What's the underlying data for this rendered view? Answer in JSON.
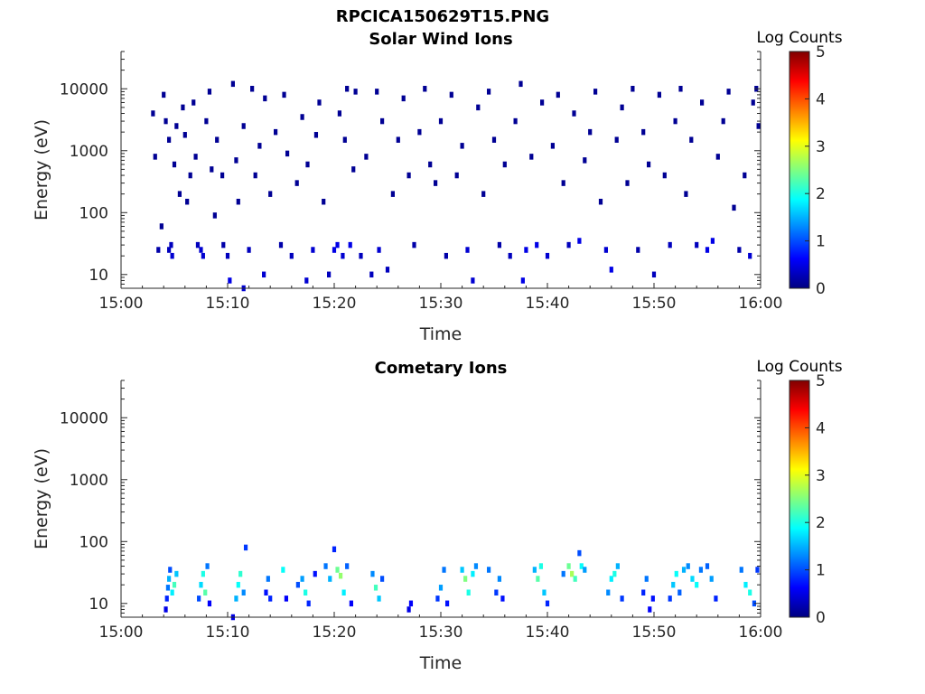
{
  "figure_title": "RPCICA150629T15.PNG",
  "colormap": [
    "#000080",
    "#0000ff",
    "#0080ff",
    "#00ffff",
    "#80ff80",
    "#ffff00",
    "#ff8000",
    "#ff0000",
    "#800000"
  ],
  "chart_data": [
    {
      "type": "heatmap",
      "title": "Solar Wind Ions",
      "xlabel": "Time",
      "ylabel": "Energy (eV)",
      "xlim": [
        0,
        60
      ],
      "ylim": [
        6,
        40000
      ],
      "yscale": "log",
      "x_ticks": [
        "15:00",
        "15:10",
        "15:20",
        "15:30",
        "15:40",
        "15:50",
        "16:00"
      ],
      "y_ticks": [
        "10",
        "100",
        "1000",
        "10000"
      ],
      "colorbar": {
        "label": "Log Counts",
        "ticks": [
          "0",
          "1",
          "2",
          "3",
          "4",
          "5"
        ],
        "range": [
          0,
          5
        ]
      },
      "cells": [
        [
          3,
          4000,
          0.1
        ],
        [
          3.2,
          800,
          0.1
        ],
        [
          3.5,
          25,
          0.2
        ],
        [
          3.8,
          60,
          0.1
        ],
        [
          4,
          8000,
          0.1
        ],
        [
          4.2,
          3000,
          0.1
        ],
        [
          4.5,
          1500,
          0.1
        ],
        [
          4.5,
          25,
          0.3
        ],
        [
          4.7,
          30,
          0.3
        ],
        [
          4.8,
          20,
          0.4
        ],
        [
          5,
          600,
          0.1
        ],
        [
          5.2,
          2500,
          0.1
        ],
        [
          5.5,
          200,
          0.1
        ],
        [
          5.8,
          5000,
          0.1
        ],
        [
          6,
          1800,
          0.1
        ],
        [
          6.2,
          150,
          0.1
        ],
        [
          6.5,
          400,
          0.1
        ],
        [
          6.8,
          6000,
          0.1
        ],
        [
          7,
          800,
          0.1
        ],
        [
          7.2,
          30,
          0.3
        ],
        [
          7.5,
          25,
          0.4
        ],
        [
          7.7,
          20,
          0.4
        ],
        [
          8,
          3000,
          0.1
        ],
        [
          8.3,
          9000,
          0.1
        ],
        [
          8.5,
          500,
          0.1
        ],
        [
          8.8,
          90,
          0.1
        ],
        [
          9,
          1500,
          0.1
        ],
        [
          9.5,
          400,
          0.1
        ],
        [
          9.6,
          30,
          0.2
        ],
        [
          10,
          20,
          0.3
        ],
        [
          10.2,
          8,
          0.5
        ],
        [
          10.5,
          12000,
          0.1
        ],
        [
          10.8,
          700,
          0.1
        ],
        [
          11,
          150,
          0.1
        ],
        [
          11.5,
          6,
          0.4
        ],
        [
          11.5,
          2500,
          0.1
        ],
        [
          12,
          25,
          0.3
        ],
        [
          12.3,
          10000,
          0.1
        ],
        [
          12.6,
          400,
          0.1
        ],
        [
          13,
          1200,
          0.1
        ],
        [
          13.4,
          10,
          0.4
        ],
        [
          13.5,
          7000,
          0.1
        ],
        [
          14,
          200,
          0.1
        ],
        [
          14.5,
          2000,
          0.1
        ],
        [
          15,
          30,
          0.2
        ],
        [
          15.3,
          8000,
          0.1
        ],
        [
          15.6,
          900,
          0.1
        ],
        [
          16,
          20,
          0.3
        ],
        [
          16.5,
          300,
          0.1
        ],
        [
          17,
          3500,
          0.1
        ],
        [
          17.4,
          8,
          0.4
        ],
        [
          17.5,
          600,
          0.1
        ],
        [
          18,
          25,
          0.4
        ],
        [
          18.3,
          1800,
          0.1
        ],
        [
          18.6,
          6000,
          0.1
        ],
        [
          19,
          150,
          0.1
        ],
        [
          19.5,
          10,
          0.3
        ],
        [
          20,
          25,
          0.5
        ],
        [
          20.3,
          30,
          0.5
        ],
        [
          20.5,
          4000,
          0.1
        ],
        [
          20.8,
          20,
          0.4
        ],
        [
          21,
          1500,
          0.1
        ],
        [
          21.2,
          10000,
          0.1
        ],
        [
          21.5,
          30,
          0.5
        ],
        [
          21.8,
          500,
          0.1
        ],
        [
          22,
          9000,
          0.1
        ],
        [
          22.5,
          20,
          0.3
        ],
        [
          23,
          800,
          0.1
        ],
        [
          23.5,
          10,
          0.3
        ],
        [
          24,
          9000,
          0.1
        ],
        [
          24.2,
          25,
          0.4
        ],
        [
          24.5,
          3000,
          0.1
        ],
        [
          25,
          12,
          0.3
        ],
        [
          25.5,
          200,
          0.1
        ],
        [
          26,
          1500,
          0.1
        ],
        [
          26.5,
          7000,
          0.1
        ],
        [
          27,
          400,
          0.1
        ],
        [
          27.5,
          30,
          0.2
        ],
        [
          28,
          2000,
          0.1
        ],
        [
          28.5,
          10000,
          0.1
        ],
        [
          29,
          600,
          0.1
        ],
        [
          29.5,
          300,
          0.1
        ],
        [
          30,
          3000,
          0.1
        ],
        [
          30.5,
          20,
          0.2
        ],
        [
          31,
          8000,
          0.1
        ],
        [
          31.5,
          400,
          0.1
        ],
        [
          32,
          1200,
          0.1
        ],
        [
          32.5,
          25,
          0.4
        ],
        [
          33,
          8,
          0.4
        ],
        [
          33.5,
          5000,
          0.1
        ],
        [
          34,
          200,
          0.1
        ],
        [
          34.5,
          9000,
          0.1
        ],
        [
          35,
          1500,
          0.1
        ],
        [
          35.5,
          30,
          0.2
        ],
        [
          36,
          600,
          0.1
        ],
        [
          36.5,
          20,
          0.3
        ],
        [
          37,
          3000,
          0.1
        ],
        [
          37.5,
          12000,
          0.1
        ],
        [
          37.7,
          8,
          0.5
        ],
        [
          38,
          25,
          0.5
        ],
        [
          38.5,
          800,
          0.1
        ],
        [
          39,
          30,
          0.5
        ],
        [
          39.5,
          6000,
          0.1
        ],
        [
          40,
          20,
          0.4
        ],
        [
          40.5,
          1200,
          0.1
        ],
        [
          41,
          8000,
          0.1
        ],
        [
          41.5,
          300,
          0.1
        ],
        [
          42,
          30,
          0.3
        ],
        [
          42.5,
          4000,
          0.1
        ],
        [
          43,
          35,
          0.5
        ],
        [
          43.5,
          700,
          0.1
        ],
        [
          44,
          2000,
          0.1
        ],
        [
          44.5,
          9000,
          0.1
        ],
        [
          45,
          150,
          0.1
        ],
        [
          45.5,
          25,
          0.4
        ],
        [
          46,
          12,
          0.5
        ],
        [
          46.5,
          1500,
          0.1
        ],
        [
          47,
          5000,
          0.1
        ],
        [
          47.5,
          300,
          0.1
        ],
        [
          48,
          10000,
          0.1
        ],
        [
          48.5,
          25,
          0.2
        ],
        [
          49,
          2000,
          0.1
        ],
        [
          49.5,
          600,
          0.1
        ],
        [
          50,
          10,
          0.3
        ],
        [
          50.5,
          8000,
          0.1
        ],
        [
          51,
          400,
          0.1
        ],
        [
          51.5,
          30,
          0.3
        ],
        [
          52,
          3000,
          0.1
        ],
        [
          52.5,
          10000,
          0.1
        ],
        [
          53,
          200,
          0.1
        ],
        [
          53.5,
          1500,
          0.1
        ],
        [
          54,
          30,
          0.3
        ],
        [
          54.5,
          6000,
          0.1
        ],
        [
          55,
          25,
          0.5
        ],
        [
          55.5,
          35,
          0.5
        ],
        [
          56,
          800,
          0.1
        ],
        [
          56.5,
          3000,
          0.1
        ],
        [
          57,
          9000,
          0.1
        ],
        [
          57.5,
          120,
          0.1
        ],
        [
          58,
          25,
          0.2
        ],
        [
          58.5,
          400,
          0.1
        ],
        [
          59,
          20,
          0.4
        ],
        [
          59.3,
          6000,
          0.1
        ],
        [
          59.6,
          10000,
          0.1
        ],
        [
          59.8,
          2500,
          0.1
        ]
      ]
    },
    {
      "type": "heatmap",
      "title": "Cometary Ions",
      "xlabel": "Time",
      "ylabel": "Energy (eV)",
      "xlim": [
        0,
        60
      ],
      "ylim": [
        6,
        40000
      ],
      "yscale": "log",
      "x_ticks": [
        "15:00",
        "15:10",
        "15:20",
        "15:30",
        "15:40",
        "15:50",
        "16:00"
      ],
      "y_ticks": [
        "10",
        "100",
        "1000",
        "10000"
      ],
      "colorbar": {
        "label": "Log Counts",
        "ticks": [
          "0",
          "1",
          "2",
          "3",
          "4",
          "5"
        ],
        "range": [
          0,
          5
        ]
      },
      "cells": [
        [
          4.2,
          8,
          0.5
        ],
        [
          4.3,
          12,
          0.8
        ],
        [
          4.4,
          18,
          1.2
        ],
        [
          4.5,
          25,
          1.5
        ],
        [
          4.6,
          35,
          1.0
        ],
        [
          4.8,
          15,
          1.8
        ],
        [
          5,
          20,
          2.2
        ],
        [
          5.2,
          30,
          1.6
        ],
        [
          7.3,
          12,
          1.0
        ],
        [
          7.5,
          20,
          1.7
        ],
        [
          7.7,
          30,
          2.0
        ],
        [
          7.9,
          15,
          2.3
        ],
        [
          8.1,
          40,
          1.2
        ],
        [
          8.3,
          10,
          0.6
        ],
        [
          10.5,
          6,
          0.5
        ],
        [
          10.8,
          12,
          1.5
        ],
        [
          11,
          20,
          1.9
        ],
        [
          11.2,
          30,
          2.1
        ],
        [
          11.5,
          15,
          1.3
        ],
        [
          11.7,
          80,
          0.9
        ],
        [
          13.6,
          15,
          0.7
        ],
        [
          13.8,
          25,
          1.2
        ],
        [
          14,
          12,
          0.8
        ],
        [
          15.2,
          35,
          1.9
        ],
        [
          15.5,
          12,
          0.6
        ],
        [
          16.6,
          20,
          1.0
        ],
        [
          17,
          25,
          1.4
        ],
        [
          17.3,
          15,
          2.0
        ],
        [
          17.6,
          10,
          0.8
        ],
        [
          18.2,
          30,
          0.7
        ],
        [
          19.2,
          40,
          1.2
        ],
        [
          19.6,
          25,
          1.5
        ],
        [
          20,
          75,
          0.8
        ],
        [
          20.3,
          35,
          2.4
        ],
        [
          20.6,
          28,
          2.6
        ],
        [
          20.9,
          15,
          1.8
        ],
        [
          21.2,
          40,
          1.1
        ],
        [
          21.6,
          10,
          0.6
        ],
        [
          23.6,
          30,
          1.3
        ],
        [
          23.9,
          18,
          2.2
        ],
        [
          24.2,
          12,
          1.6
        ],
        [
          24.5,
          25,
          1.0
        ],
        [
          27,
          8,
          0.5
        ],
        [
          27.2,
          10,
          0.6
        ],
        [
          29.7,
          12,
          0.9
        ],
        [
          30,
          18,
          1.4
        ],
        [
          30.3,
          35,
          1.2
        ],
        [
          30.6,
          10,
          0.7
        ],
        [
          32,
          35,
          1.6
        ],
        [
          32.3,
          25,
          2.5
        ],
        [
          32.6,
          15,
          2.0
        ],
        [
          33,
          30,
          1.8
        ],
        [
          33.3,
          40,
          1.3
        ],
        [
          34.5,
          35,
          1.2
        ],
        [
          35.2,
          15,
          0.9
        ],
        [
          35.5,
          25,
          1.3
        ],
        [
          35.8,
          12,
          0.7
        ],
        [
          38.8,
          35,
          1.5
        ],
        [
          39.1,
          25,
          2.3
        ],
        [
          39.4,
          40,
          2.0
        ],
        [
          39.7,
          15,
          1.6
        ],
        [
          40,
          10,
          0.8
        ],
        [
          41.5,
          30,
          1.2
        ],
        [
          42,
          40,
          2.4
        ],
        [
          42.3,
          30,
          2.7
        ],
        [
          42.6,
          25,
          2.2
        ],
        [
          43,
          65,
          1.0
        ],
        [
          43.2,
          40,
          1.9
        ],
        [
          43.5,
          35,
          1.4
        ],
        [
          45.7,
          15,
          1.3
        ],
        [
          46,
          25,
          1.8
        ],
        [
          46.3,
          30,
          2.0
        ],
        [
          46.6,
          40,
          1.5
        ],
        [
          47,
          12,
          0.9
        ],
        [
          49,
          15,
          0.8
        ],
        [
          49.3,
          25,
          1.2
        ],
        [
          49.6,
          8,
          0.6
        ],
        [
          49.9,
          12,
          0.7
        ],
        [
          51.5,
          12,
          0.9
        ],
        [
          51.8,
          20,
          1.6
        ],
        [
          52.1,
          30,
          1.9
        ],
        [
          52.4,
          15,
          1.1
        ],
        [
          52.8,
          35,
          1.5
        ],
        [
          53.2,
          40,
          1.3
        ],
        [
          53.6,
          25,
          1.7
        ],
        [
          54,
          20,
          1.9
        ],
        [
          54.4,
          35,
          1.2
        ],
        [
          55,
          40,
          1.1
        ],
        [
          55.4,
          25,
          1.4
        ],
        [
          55.8,
          12,
          0.8
        ],
        [
          58.2,
          35,
          1.2
        ],
        [
          58.6,
          20,
          1.8
        ],
        [
          59,
          15,
          2.0
        ],
        [
          59.4,
          10,
          1.0
        ],
        [
          59.7,
          35,
          0.9
        ]
      ]
    }
  ]
}
